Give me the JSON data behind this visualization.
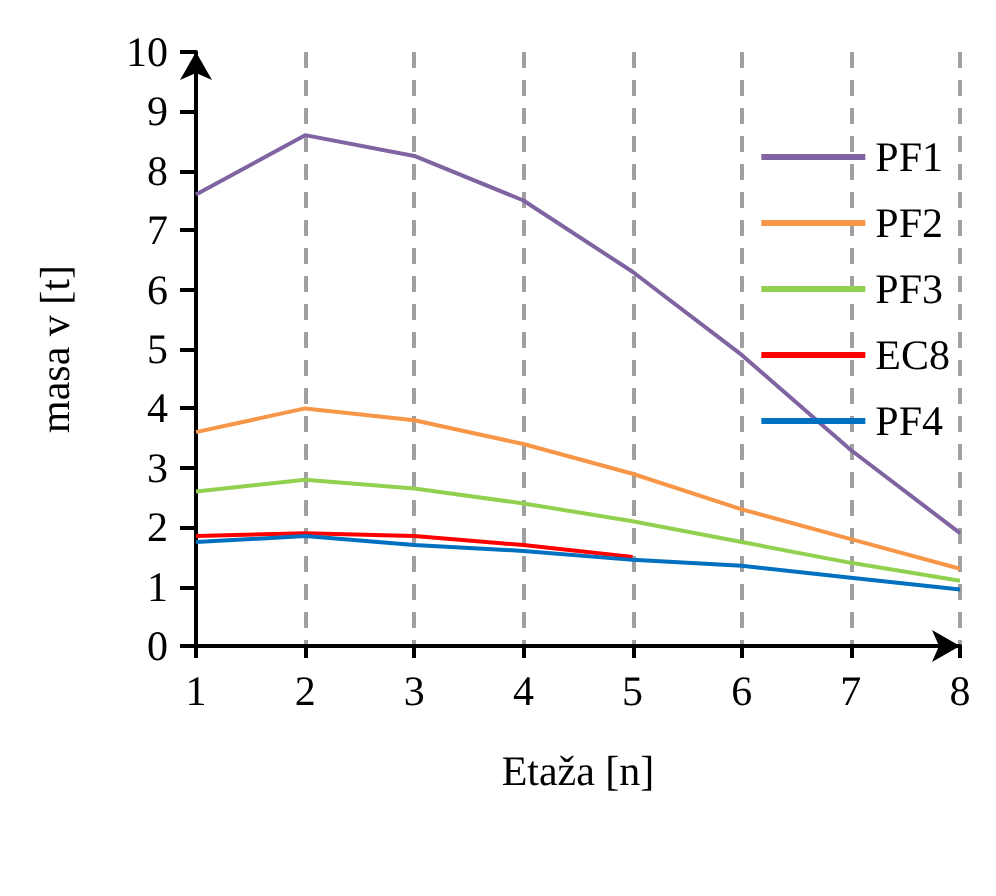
{
  "chart_data": {
    "type": "line",
    "xlabel": "Etaža [n]",
    "ylabel": "masa v [t]",
    "x": [
      1,
      2,
      3,
      4,
      5,
      6,
      7,
      8
    ],
    "xlim": [
      1,
      8
    ],
    "xticks": [
      1,
      2,
      3,
      4,
      5,
      6,
      7,
      8
    ],
    "ylim": [
      0,
      10
    ],
    "yticks": [
      0,
      1,
      2,
      3,
      4,
      5,
      6,
      7,
      8,
      9,
      10
    ],
    "grid": "x",
    "legend": "right",
    "marker": "none",
    "line_style": "solid",
    "series": [
      {
        "name": "PF1",
        "color": "#8064a2",
        "values": [
          7.6,
          8.6,
          8.25,
          7.5,
          6.3,
          4.9,
          3.3,
          1.9
        ]
      },
      {
        "name": "PF2",
        "color": "#f79646",
        "values": [
          3.6,
          4.0,
          3.8,
          3.4,
          2.9,
          2.3,
          1.8,
          1.3
        ]
      },
      {
        "name": "PF3",
        "color": "#92d050",
        "values": [
          2.6,
          2.8,
          2.65,
          2.4,
          2.1,
          1.75,
          1.4,
          1.1
        ]
      },
      {
        "name": "EC8",
        "color": "#ff0000",
        "values": [
          1.85,
          1.9,
          1.85,
          1.7,
          1.5,
          null,
          null,
          null
        ]
      },
      {
        "name": "PF4",
        "color": "#0070c0",
        "values": [
          1.75,
          1.85,
          1.7,
          1.6,
          1.45,
          1.35,
          1.15,
          0.95
        ]
      }
    ]
  }
}
